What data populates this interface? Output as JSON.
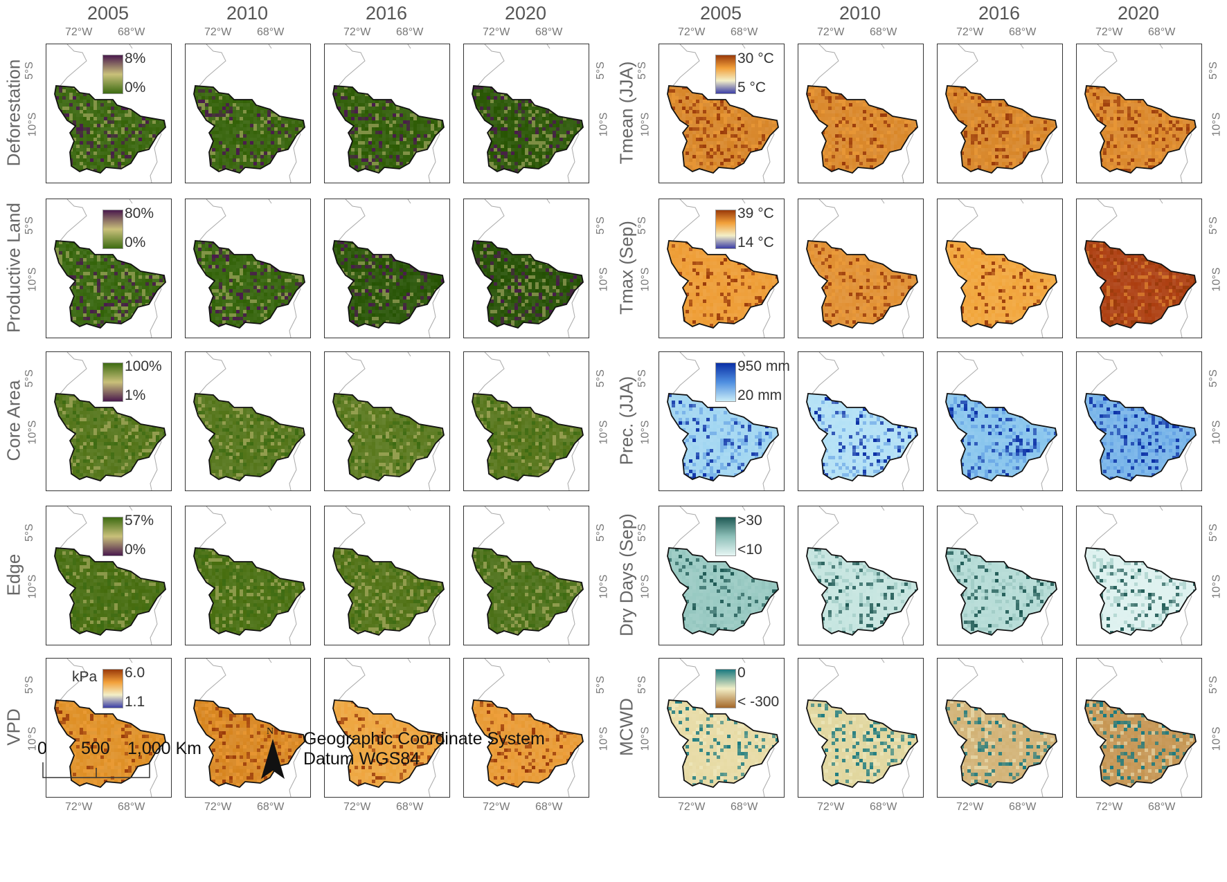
{
  "years": [
    "2005",
    "2010",
    "2016",
    "2020"
  ],
  "lon_ticks": [
    "72°W",
    "68°W"
  ],
  "lat_ticks": [
    "5°S",
    "10°S"
  ],
  "left_rows": [
    {
      "label": "Deforestation",
      "legend_top": "8%",
      "legend_bottom": "0%",
      "ramp": [
        "#4a1a4d",
        "#c9c07a",
        "#3d6b12"
      ]
    },
    {
      "label": "Productive Land",
      "legend_top": "80%",
      "legend_bottom": "0%",
      "ramp": [
        "#4a1a4d",
        "#c9c07a",
        "#3d6b12"
      ]
    },
    {
      "label": "Core Area",
      "legend_top": "100%",
      "legend_bottom": "1%",
      "ramp": [
        "#3d6b12",
        "#c9c07a",
        "#4a1a4d"
      ]
    },
    {
      "label": "Edge",
      "legend_top": "57%",
      "legend_bottom": "0%",
      "ramp": [
        "#3d6b12",
        "#c9c07a",
        "#4a1a4d"
      ]
    },
    {
      "label": "VPD",
      "legend_unit": "kPa",
      "legend_top": "6.0",
      "legend_bottom": "1.1",
      "ramp": [
        "#9a3a0a",
        "#f2a03a",
        "#f3efc8",
        "#3b3ea6"
      ]
    }
  ],
  "right_rows": [
    {
      "label": "Tmean  (JJA)",
      "legend_top": "30 °C",
      "legend_bottom": "5 °C",
      "ramp": [
        "#9a3a0a",
        "#f2a03a",
        "#f3efc8",
        "#3b3ea6"
      ]
    },
    {
      "label": "Tmax (Sep)",
      "legend_top": "39 °C",
      "legend_bottom": "14 °C",
      "ramp": [
        "#9a3a0a",
        "#f2a03a",
        "#f3efc8",
        "#3b3ea6"
      ]
    },
    {
      "label": "Prec. (JJA)",
      "legend_top": "950 mm",
      "legend_bottom": "20 mm",
      "ramp": [
        "#0a2fa6",
        "#4f8fe0",
        "#c9ecf7"
      ]
    },
    {
      "label": "Dry Days (Sep)",
      "legend_top": ">30",
      "legend_bottom": "<10",
      "ramp": [
        "#1f5a55",
        "#8dbfb8",
        "#e6f6f4"
      ]
    },
    {
      "label": "MCWD",
      "legend_top": "0",
      "legend_bottom": "< -300",
      "ramp": [
        "#1b7a80",
        "#f2eec6",
        "#a4682a"
      ]
    }
  ],
  "colors": {
    "left": [
      [
        "#3e6a14",
        "#3c6812",
        "#36620f",
        "#315c0e"
      ],
      [
        "#3c6a14",
        "#3a6812",
        "#2f5a0e",
        "#2c560d"
      ],
      [
        "#5a7a22",
        "#5a7a22",
        "#5f7d25",
        "#5c7a22"
      ],
      [
        "#4d7218",
        "#4f7419",
        "#58781f",
        "#527520"
      ],
      [
        "#e0942e",
        "#d98a28",
        "#eeaa48",
        "#e99e3c"
      ]
    ],
    "right": [
      [
        "#d98a30",
        "#db8c32",
        "#d98a30",
        "#dc8c32"
      ],
      [
        "#eea03c",
        "#e2943a",
        "#f2aa44",
        "#b0461a"
      ],
      [
        "#a6d8f2",
        "#b6e2f6",
        "#8ec8ee",
        "#7eb8ea"
      ],
      [
        "#9dccc5",
        "#c8e6e1",
        "#b8ddd8",
        "#dff2f0"
      ],
      [
        "#e8dca8",
        "#e2d8a2",
        "#d4b67c",
        "#c89a5a"
      ]
    ]
  },
  "scale_bar": {
    "labels": [
      "0",
      "500",
      "1,000 Km"
    ]
  },
  "north_label": "N",
  "crs_lines": [
    "Geographic Coordinate System",
    "Datum WGS84"
  ]
}
